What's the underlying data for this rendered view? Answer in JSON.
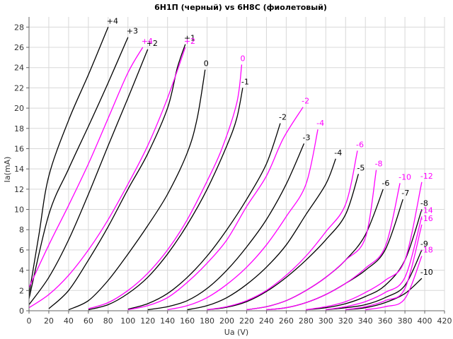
{
  "chart_data": {
    "type": "line",
    "title": "6Н1П (черный) vs 6Н8С (фиолетовый)",
    "xlabel": "Ua (V)",
    "ylabel": "Ia(mA)",
    "xlim": [
      0,
      420
    ],
    "ylim": [
      0,
      29
    ],
    "x_ticks": [
      0,
      20,
      40,
      60,
      80,
      100,
      120,
      140,
      160,
      180,
      200,
      220,
      240,
      260,
      280,
      300,
      320,
      340,
      360,
      380,
      400,
      420
    ],
    "y_ticks": [
      0,
      2,
      4,
      6,
      8,
      10,
      12,
      14,
      16,
      18,
      20,
      22,
      24,
      26,
      28
    ],
    "grid": true,
    "legend": "none",
    "colors": {
      "black": "#000000",
      "purple": "#ff00ff"
    },
    "series": [
      {
        "name": "+4",
        "color": "black",
        "points": [
          [
            0,
            1.6
          ],
          [
            10,
            7.5
          ],
          [
            20,
            13.3
          ],
          [
            40,
            18.8
          ],
          [
            60,
            23.3
          ],
          [
            80,
            28.0
          ]
        ]
      },
      {
        "name": "+3",
        "color": "black",
        "points": [
          [
            0,
            1.2
          ],
          [
            20,
            9.5
          ],
          [
            40,
            14.0
          ],
          [
            60,
            18.2
          ],
          [
            80,
            22.5
          ],
          [
            100,
            27.0
          ]
        ]
      },
      {
        "name": "+2",
        "color": "black",
        "points": [
          [
            0,
            0.6
          ],
          [
            20,
            3.3
          ],
          [
            40,
            7.0
          ],
          [
            60,
            11.5
          ],
          [
            80,
            16.3
          ],
          [
            100,
            21.0
          ],
          [
            120,
            25.8
          ]
        ]
      },
      {
        "name": "+1",
        "color": "black",
        "points": [
          [
            20,
            0.2
          ],
          [
            40,
            2.0
          ],
          [
            60,
            5.0
          ],
          [
            80,
            8.3
          ],
          [
            100,
            12.0
          ],
          [
            120,
            15.5
          ],
          [
            140,
            20.0
          ],
          [
            150,
            24.0
          ],
          [
            158,
            26.3
          ]
        ]
      },
      {
        "name": "0",
        "color": "black",
        "points": [
          [
            40,
            0.1
          ],
          [
            60,
            1.0
          ],
          [
            80,
            3.0
          ],
          [
            100,
            5.6
          ],
          [
            120,
            8.4
          ],
          [
            140,
            11.5
          ],
          [
            160,
            15.6
          ],
          [
            170,
            19.0
          ],
          [
            178,
            23.8
          ]
        ]
      },
      {
        "name": "-1",
        "color": "black",
        "points": [
          [
            60,
            0.1
          ],
          [
            80,
            0.6
          ],
          [
            100,
            1.7
          ],
          [
            120,
            3.3
          ],
          [
            140,
            5.6
          ],
          [
            160,
            8.5
          ],
          [
            180,
            12.0
          ],
          [
            200,
            16.3
          ],
          [
            210,
            19.0
          ],
          [
            216,
            22.0
          ]
        ]
      },
      {
        "name": "-2",
        "color": "black",
        "points": [
          [
            100,
            0.15
          ],
          [
            120,
            0.7
          ],
          [
            140,
            1.7
          ],
          [
            160,
            3.3
          ],
          [
            180,
            5.4
          ],
          [
            200,
            8.0
          ],
          [
            220,
            11.0
          ],
          [
            240,
            14.5
          ],
          [
            254,
            18.5
          ]
        ]
      },
      {
        "name": "-3",
        "color": "black",
        "points": [
          [
            120,
            0.1
          ],
          [
            140,
            0.4
          ],
          [
            160,
            1.0
          ],
          [
            180,
            2.2
          ],
          [
            200,
            4.0
          ],
          [
            220,
            6.3
          ],
          [
            240,
            9.0
          ],
          [
            260,
            12.5
          ],
          [
            278,
            16.5
          ]
        ]
      },
      {
        "name": "-4",
        "color": "black",
        "points": [
          [
            160,
            0.1
          ],
          [
            180,
            0.5
          ],
          [
            200,
            1.3
          ],
          [
            220,
            2.6
          ],
          [
            240,
            4.3
          ],
          [
            260,
            6.5
          ],
          [
            280,
            9.5
          ],
          [
            300,
            12.5
          ],
          [
            310,
            15.0
          ]
        ]
      },
      {
        "name": "-5",
        "color": "black",
        "points": [
          [
            180,
            0.1
          ],
          [
            200,
            0.35
          ],
          [
            220,
            0.9
          ],
          [
            240,
            1.9
          ],
          [
            260,
            3.3
          ],
          [
            280,
            5.0
          ],
          [
            300,
            7.0
          ],
          [
            320,
            9.5
          ],
          [
            333,
            13.5
          ]
        ]
      },
      {
        "name": "-6",
        "color": "black",
        "points": [
          [
            220,
            0.1
          ],
          [
            240,
            0.4
          ],
          [
            260,
            1.0
          ],
          [
            280,
            2.0
          ],
          [
            300,
            3.3
          ],
          [
            320,
            5.0
          ],
          [
            340,
            7.5
          ],
          [
            358,
            12.0
          ]
        ]
      },
      {
        "name": "-7",
        "color": "black",
        "points": [
          [
            240,
            0.1
          ],
          [
            260,
            0.3
          ],
          [
            280,
            0.8
          ],
          [
            300,
            1.6
          ],
          [
            320,
            2.7
          ],
          [
            340,
            4.0
          ],
          [
            360,
            6.0
          ],
          [
            378,
            11.0
          ]
        ]
      },
      {
        "name": "-8",
        "color": "black",
        "points": [
          [
            280,
            0.1
          ],
          [
            300,
            0.3
          ],
          [
            320,
            0.7
          ],
          [
            340,
            1.4
          ],
          [
            360,
            2.5
          ],
          [
            380,
            5.0
          ],
          [
            397,
            10.0
          ]
        ]
      },
      {
        "name": "-9",
        "color": "black",
        "points": [
          [
            300,
            0.1
          ],
          [
            320,
            0.3
          ],
          [
            340,
            0.6
          ],
          [
            360,
            1.3
          ],
          [
            380,
            2.5
          ],
          [
            397,
            6.0
          ]
        ]
      },
      {
        "name": "-10",
        "color": "black",
        "points": [
          [
            320,
            0.1
          ],
          [
            340,
            0.3
          ],
          [
            360,
            0.8
          ],
          [
            380,
            1.7
          ],
          [
            397,
            3.2
          ]
        ]
      },
      {
        "name": "+4",
        "color": "purple",
        "points": [
          [
            0,
            2.3
          ],
          [
            20,
            6.5
          ],
          [
            40,
            10.4
          ],
          [
            60,
            14.5
          ],
          [
            80,
            19.0
          ],
          [
            100,
            23.5
          ],
          [
            115,
            26.0
          ]
        ]
      },
      {
        "name": "+2",
        "color": "purple",
        "points": [
          [
            0,
            0.3
          ],
          [
            20,
            1.6
          ],
          [
            40,
            3.5
          ],
          [
            60,
            6.0
          ],
          [
            80,
            9.0
          ],
          [
            100,
            12.5
          ],
          [
            120,
            16.3
          ],
          [
            140,
            21.0
          ],
          [
            158,
            26.0
          ]
        ]
      },
      {
        "name": "0",
        "color": "purple",
        "points": [
          [
            60,
            0.2
          ],
          [
            80,
            0.8
          ],
          [
            100,
            2.0
          ],
          [
            120,
            3.7
          ],
          [
            140,
            6.0
          ],
          [
            160,
            9.0
          ],
          [
            180,
            12.8
          ],
          [
            195,
            16.0
          ],
          [
            210,
            20.5
          ],
          [
            215,
            24.3
          ]
        ]
      },
      {
        "name": "-2",
        "color": "purple",
        "points": [
          [
            100,
            0.1
          ],
          [
            120,
            0.5
          ],
          [
            140,
            1.3
          ],
          [
            160,
            2.8
          ],
          [
            180,
            4.7
          ],
          [
            200,
            7.0
          ],
          [
            220,
            10.3
          ],
          [
            240,
            13.3
          ],
          [
            257,
            17.0
          ],
          [
            277,
            20.1
          ]
        ]
      },
      {
        "name": "-4",
        "color": "purple",
        "points": [
          [
            140,
            0.1
          ],
          [
            160,
            0.5
          ],
          [
            180,
            1.3
          ],
          [
            200,
            2.6
          ],
          [
            220,
            4.3
          ],
          [
            240,
            6.5
          ],
          [
            260,
            9.3
          ],
          [
            280,
            12.5
          ],
          [
            292,
            17.9
          ]
        ]
      },
      {
        "name": "-6",
        "color": "purple",
        "points": [
          [
            180,
            0.1
          ],
          [
            200,
            0.4
          ],
          [
            220,
            1.0
          ],
          [
            240,
            2.0
          ],
          [
            260,
            3.5
          ],
          [
            280,
            5.4
          ],
          [
            300,
            7.8
          ],
          [
            320,
            10.5
          ],
          [
            332,
            15.8
          ]
        ]
      },
      {
        "name": "-8",
        "color": "purple",
        "points": [
          [
            220,
            0.1
          ],
          [
            240,
            0.4
          ],
          [
            260,
            1.0
          ],
          [
            280,
            2.0
          ],
          [
            300,
            3.3
          ],
          [
            320,
            5.0
          ],
          [
            340,
            7.2
          ],
          [
            351,
            13.9
          ]
        ]
      },
      {
        "name": "-10",
        "color": "purple",
        "points": [
          [
            240,
            0.1
          ],
          [
            260,
            0.3
          ],
          [
            280,
            0.8
          ],
          [
            300,
            1.6
          ],
          [
            320,
            2.7
          ],
          [
            340,
            4.2
          ],
          [
            360,
            6.3
          ],
          [
            375,
            12.6
          ]
        ]
      },
      {
        "name": "-12",
        "color": "purple",
        "points": [
          [
            280,
            0.1
          ],
          [
            300,
            0.4
          ],
          [
            320,
            0.9
          ],
          [
            340,
            1.8
          ],
          [
            360,
            3.0
          ],
          [
            380,
            5.0
          ],
          [
            397,
            12.7
          ]
        ]
      },
      {
        "name": "-14",
        "color": "purple",
        "points": [
          [
            300,
            0.1
          ],
          [
            320,
            0.4
          ],
          [
            340,
            0.9
          ],
          [
            360,
            1.8
          ],
          [
            380,
            3.3
          ],
          [
            397,
            9.3
          ]
        ]
      },
      {
        "name": "-16",
        "color": "purple",
        "points": [
          [
            320,
            0.1
          ],
          [
            340,
            0.4
          ],
          [
            360,
            1.0
          ],
          [
            380,
            2.2
          ],
          [
            397,
            8.5
          ]
        ]
      },
      {
        "name": "-18",
        "color": "purple",
        "points": [
          [
            340,
            0.1
          ],
          [
            360,
            0.4
          ],
          [
            380,
            1.2
          ],
          [
            397,
            5.4
          ]
        ]
      }
    ]
  }
}
